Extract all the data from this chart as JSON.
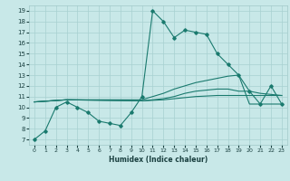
{
  "xlabel": "Humidex (Indice chaleur)",
  "background_color": "#c8e8e8",
  "grid_color": "#a8d0d0",
  "line_color": "#1a7a6e",
  "xlim": [
    -0.5,
    23.5
  ],
  "ylim": [
    6.5,
    19.5
  ],
  "xticks": [
    0,
    1,
    2,
    3,
    4,
    5,
    6,
    7,
    8,
    9,
    10,
    11,
    12,
    13,
    14,
    15,
    16,
    17,
    18,
    19,
    20,
    21,
    22,
    23
  ],
  "yticks": [
    7,
    8,
    9,
    10,
    11,
    12,
    13,
    14,
    15,
    16,
    17,
    18,
    19
  ],
  "series": [
    {
      "x": [
        0,
        1,
        2,
        3,
        4,
        5,
        6,
        7,
        8,
        9,
        10,
        11,
        12,
        13,
        14,
        15,
        16,
        17,
        18,
        19,
        20,
        21,
        22,
        23
      ],
      "y": [
        7,
        7.8,
        10,
        10.5,
        10,
        9.5,
        8.7,
        8.5,
        8.3,
        9.5,
        11,
        19,
        18,
        16.5,
        17.2,
        17,
        16.8,
        15,
        14,
        13,
        11.5,
        10.3,
        12,
        10.3
      ],
      "marker": true
    },
    {
      "x": [
        0,
        3,
        10,
        11,
        12,
        13,
        14,
        15,
        16,
        17,
        18,
        19,
        20,
        21,
        22,
        23
      ],
      "y": [
        10.5,
        10.7,
        10.6,
        10.7,
        10.8,
        11.0,
        11.3,
        11.5,
        11.6,
        11.7,
        11.7,
        11.5,
        11.5,
        11.3,
        11.2,
        11.1
      ],
      "marker": false
    },
    {
      "x": [
        0,
        3,
        10,
        11,
        12,
        13,
        14,
        15,
        16,
        17,
        18,
        19,
        20,
        21,
        22,
        23
      ],
      "y": [
        10.5,
        10.7,
        10.7,
        11.0,
        11.3,
        11.7,
        12.0,
        12.3,
        12.5,
        12.7,
        12.9,
        13.0,
        10.3,
        10.3,
        10.3,
        10.3
      ],
      "marker": false
    },
    {
      "x": [
        0,
        3,
        10,
        11,
        12,
        13,
        14,
        15,
        16,
        17,
        18,
        19,
        20,
        21,
        22,
        23
      ],
      "y": [
        10.5,
        10.7,
        10.6,
        10.65,
        10.7,
        10.8,
        10.9,
        11.0,
        11.05,
        11.1,
        11.1,
        11.1,
        11.1,
        11.1,
        11.1,
        11.1
      ],
      "marker": false
    }
  ]
}
